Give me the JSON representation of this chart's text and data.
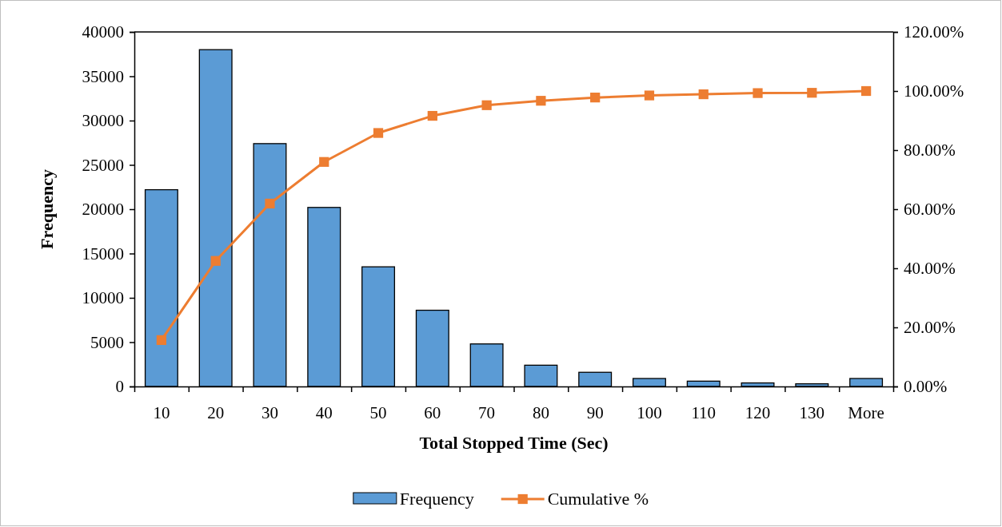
{
  "chart_data": {
    "type": "bar",
    "xlabel": "Total Stopped Time (Sec)",
    "ylabel": "Frequency",
    "categories": [
      "10",
      "20",
      "30",
      "40",
      "50",
      "60",
      "70",
      "80",
      "90",
      "100",
      "110",
      "120",
      "130",
      "More"
    ],
    "series": [
      {
        "name": "Frequency",
        "color": "#5b9bd5",
        "values": [
          22200,
          38000,
          27400,
          20200,
          13500,
          8600,
          4800,
          2400,
          1600,
          900,
          600,
          400,
          300,
          900
        ]
      },
      {
        "name": "Cumulative %",
        "type": "line",
        "axis": "y2",
        "color": "#ed7d31",
        "marker": "square",
        "values": [
          15.7,
          42.5,
          61.9,
          76.0,
          85.8,
          91.6,
          95.2,
          96.7,
          97.8,
          98.5,
          98.9,
          99.3,
          99.4,
          100
        ]
      }
    ],
    "ylim": [
      0,
      40000
    ],
    "yticks": [
      0,
      5000,
      10000,
      15000,
      20000,
      25000,
      30000,
      35000,
      40000
    ],
    "y2lim": [
      0,
      120
    ],
    "y2ticks": [
      {
        "value": 0,
        "label": "0.00%"
      },
      {
        "value": 20,
        "label": "20.00%"
      },
      {
        "value": 40,
        "label": "40.00%"
      },
      {
        "value": 60,
        "label": "60.00%"
      },
      {
        "value": 80,
        "label": "80.00%"
      },
      {
        "value": 100,
        "label": "100.00%"
      },
      {
        "value": 120,
        "label": "120.00%"
      }
    ],
    "legend": "bottom"
  }
}
